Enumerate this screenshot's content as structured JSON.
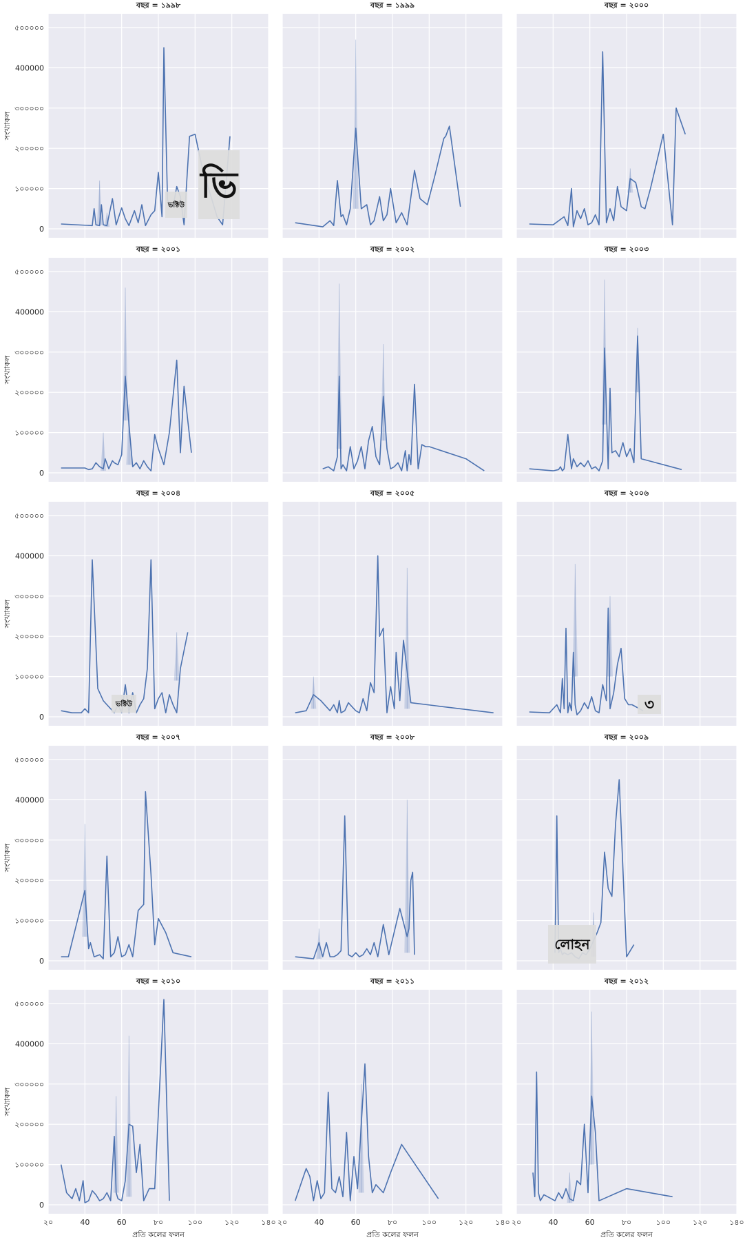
{
  "chart_data": {
    "type": "line",
    "layout": {
      "rows": 5,
      "cols": 3,
      "sharex": true,
      "sharey": true
    },
    "xlabel": "প্রতি কলের ফলন",
    "ylabel": "সংখ্যাকল",
    "xlim": [
      20,
      140
    ],
    "ylim": [
      0,
      500000
    ],
    "x_ticks": [
      20,
      40,
      60,
      80,
      100,
      120,
      140
    ],
    "x_tick_labels": [
      "২০",
      "40",
      "60",
      "৮০",
      "১০০",
      "১২০",
      "১৪০"
    ],
    "y_ticks": [
      0,
      100000,
      200000,
      300000,
      400000,
      500000
    ],
    "y_tick_labels": [
      "0",
      "১০০০০০",
      "২০০০০০",
      "৩০০০০০",
      "400000",
      "৫০০০০০"
    ],
    "grid": true,
    "color": "#4c72b0",
    "panels": [
      {
        "title": "বছর = ১৯৯৮",
        "x": [
          27,
          44,
          45,
          46,
          48,
          49,
          50,
          52,
          55,
          57,
          60,
          62,
          64,
          67,
          69,
          71,
          73,
          76,
          78,
          80,
          82,
          83,
          85,
          88,
          90,
          92,
          94,
          97,
          100,
          104,
          108,
          112,
          115,
          119
        ],
        "y": [
          12000,
          8000,
          50000,
          10000,
          8000,
          60000,
          10000,
          8000,
          75000,
          10000,
          52000,
          25000,
          8000,
          45000,
          15000,
          60000,
          8000,
          35000,
          45000,
          140000,
          30000,
          450000,
          70000,
          55000,
          105000,
          80000,
          10000,
          230000,
          235000,
          150000,
          90000,
          30000,
          10000,
          230000
        ],
        "ci": [
          {
            "x": 48,
            "low": 10000,
            "high": 120000
          },
          {
            "x": 52,
            "low": 5000,
            "high": 40000
          }
        ]
      },
      {
        "title": "বছর = ১৯৯৯",
        "x": [
          27,
          42,
          46,
          48,
          50,
          52,
          53,
          55,
          57,
          60,
          63,
          66,
          68,
          70,
          72,
          73,
          75,
          77,
          79,
          82,
          85,
          88,
          92,
          95,
          99,
          103,
          108,
          109,
          111,
          117
        ],
        "y": [
          15000,
          5000,
          20000,
          8000,
          120000,
          30000,
          35000,
          10000,
          50000,
          250000,
          50000,
          60000,
          10000,
          20000,
          60000,
          80000,
          20000,
          35000,
          100000,
          15000,
          40000,
          10000,
          145000,
          75000,
          60000,
          130000,
          225000,
          230000,
          255000,
          55000
        ],
        "ci": [
          {
            "x": 60,
            "low": 50000,
            "high": 470000
          }
        ]
      },
      {
        "title": "বছর = ২০০০",
        "x": [
          27,
          40,
          46,
          48,
          50,
          51,
          53,
          55,
          57,
          59,
          61,
          63,
          65,
          67,
          69,
          71,
          73,
          75,
          77,
          80,
          82,
          85,
          88,
          90,
          93,
          100,
          105,
          107,
          112
        ],
        "y": [
          12000,
          10000,
          30000,
          8000,
          100000,
          5000,
          45000,
          25000,
          50000,
          10000,
          15000,
          35000,
          10000,
          440000,
          15000,
          50000,
          20000,
          105000,
          55000,
          45000,
          125000,
          115000,
          55000,
          50000,
          100000,
          235000,
          10000,
          300000,
          235000
        ],
        "ci": [
          {
            "x": 82,
            "low": 90000,
            "high": 150000
          }
        ]
      },
      {
        "title": "বছর = ২০০১",
        "x": [
          27,
          40,
          42,
          44,
          46,
          48,
          50,
          51,
          53,
          55,
          56,
          58,
          60,
          62,
          64,
          66,
          68,
          70,
          72,
          74,
          76,
          78,
          80,
          83,
          86,
          90,
          92,
          94,
          96,
          98
        ],
        "y": [
          12000,
          12000,
          8000,
          10000,
          25000,
          15000,
          10000,
          35000,
          10000,
          30000,
          25000,
          20000,
          45000,
          240000,
          120000,
          15000,
          25000,
          10000,
          30000,
          15000,
          5000,
          95000,
          60000,
          20000,
          100000,
          280000,
          50000,
          215000,
          130000,
          50000
        ],
        "ci": [
          {
            "x": 62,
            "low": 130000,
            "high": 460000
          },
          {
            "x": 64,
            "low": 20000,
            "high": 170000
          },
          {
            "x": 50,
            "low": 5000,
            "high": 100000
          }
        ]
      },
      {
        "title": "বছর = ২০০২",
        "x": [
          42,
          45,
          48,
          50,
          51,
          52,
          53,
          55,
          57,
          59,
          61,
          63,
          65,
          67,
          69,
          71,
          73,
          75,
          77,
          79,
          81,
          83,
          85,
          87,
          88,
          89,
          90,
          92,
          94,
          96,
          98,
          100,
          120,
          130
        ],
        "y": [
          10000,
          15000,
          5000,
          40000,
          240000,
          10000,
          20000,
          5000,
          65000,
          10000,
          30000,
          65000,
          10000,
          80000,
          115000,
          40000,
          20000,
          190000,
          60000,
          10000,
          15000,
          25000,
          5000,
          55000,
          5000,
          45000,
          20000,
          220000,
          10000,
          70000,
          65000,
          65000,
          35000,
          5000
        ],
        "ci": [
          {
            "x": 51,
            "low": 60000,
            "high": 470000
          },
          {
            "x": 75,
            "low": 80000,
            "high": 320000
          }
        ]
      },
      {
        "title": "বছর = ২০০৩",
        "x": [
          27,
          40,
          43,
          44,
          45,
          46,
          48,
          50,
          51,
          53,
          55,
          57,
          59,
          61,
          63,
          65,
          67,
          68,
          70,
          71,
          72,
          74,
          76,
          78,
          80,
          82,
          84,
          86,
          88,
          110
        ],
        "y": [
          10000,
          5000,
          8000,
          15000,
          5000,
          10000,
          95000,
          10000,
          35000,
          15000,
          25000,
          15000,
          30000,
          10000,
          15000,
          5000,
          30000,
          310000,
          10000,
          210000,
          50000,
          55000,
          40000,
          75000,
          40000,
          60000,
          25000,
          340000,
          35000,
          8000
        ],
        "ci": [
          {
            "x": 68,
            "low": 120000,
            "high": 480000
          },
          {
            "x": 86,
            "low": 200000,
            "high": 360000
          }
        ]
      },
      {
        "title": "বছর = ২০০৪",
        "x": [
          27,
          33,
          38,
          40,
          42,
          44,
          47,
          50,
          52,
          54,
          56,
          58,
          60,
          62,
          64,
          66,
          68,
          70,
          72,
          74,
          76,
          78,
          80,
          82,
          84,
          86,
          88,
          90,
          92,
          96
        ],
        "y": [
          15000,
          10000,
          10000,
          20000,
          10000,
          390000,
          70000,
          40000,
          30000,
          20000,
          10000,
          30000,
          10000,
          80000,
          10000,
          60000,
          10000,
          30000,
          45000,
          120000,
          390000,
          20000,
          45000,
          60000,
          10000,
          55000,
          30000,
          10000,
          120000,
          210000
        ],
        "ci": [
          {
            "x": 90,
            "low": 90000,
            "high": 210000
          }
        ]
      },
      {
        "title": "বছর = ২০০৫",
        "x": [
          27,
          33,
          37,
          41,
          44,
          46,
          48,
          50,
          51,
          52,
          54,
          56,
          58,
          60,
          62,
          64,
          66,
          68,
          70,
          72,
          73,
          75,
          77,
          79,
          81,
          82,
          84,
          86,
          90,
          135
        ],
        "y": [
          10000,
          15000,
          55000,
          40000,
          25000,
          15000,
          30000,
          10000,
          40000,
          10000,
          15000,
          35000,
          25000,
          15000,
          10000,
          45000,
          15000,
          85000,
          60000,
          400000,
          200000,
          220000,
          10000,
          75000,
          20000,
          160000,
          40000,
          190000,
          35000,
          10000
        ],
        "ci": [
          {
            "x": 88,
            "low": 20000,
            "high": 370000
          },
          {
            "x": 37,
            "low": 20000,
            "high": 100000
          }
        ]
      },
      {
        "title": "বছর = ২০০৬",
        "x": [
          27,
          38,
          42,
          44,
          45,
          46,
          47,
          48,
          49,
          50,
          51,
          52,
          53,
          55,
          57,
          59,
          61,
          63,
          65,
          67,
          69,
          70,
          71,
          73,
          75,
          77,
          79,
          81,
          83,
          89
        ],
        "y": [
          12000,
          10000,
          30000,
          10000,
          95000,
          20000,
          220000,
          10000,
          35000,
          15000,
          160000,
          30000,
          5000,
          15000,
          35000,
          20000,
          50000,
          15000,
          10000,
          80000,
          40000,
          270000,
          20000,
          60000,
          130000,
          170000,
          45000,
          30000,
          30000,
          15000
        ],
        "ci": [
          {
            "x": 52,
            "low": 100000,
            "high": 380000
          },
          {
            "x": 71,
            "low": 100000,
            "high": 300000
          }
        ]
      },
      {
        "title": "বছর = ২০০৭",
        "x": [
          27,
          31,
          40,
          42,
          43,
          45,
          48,
          50,
          52,
          54,
          56,
          58,
          60,
          62,
          64,
          66,
          69,
          72,
          73,
          76,
          78,
          80,
          84,
          88,
          98
        ],
        "y": [
          10000,
          10000,
          175000,
          30000,
          45000,
          10000,
          15000,
          5000,
          260000,
          10000,
          20000,
          60000,
          10000,
          15000,
          40000,
          10000,
          125000,
          140000,
          420000,
          215000,
          40000,
          105000,
          70000,
          20000,
          10000
        ],
        "ci": [
          {
            "x": 40,
            "low": 60000,
            "high": 340000
          }
        ]
      },
      {
        "title": "বছর = ২০০৮",
        "x": [
          27,
          37,
          40,
          42,
          44,
          46,
          48,
          50,
          52,
          54,
          56,
          58,
          60,
          62,
          64,
          66,
          68,
          70,
          72,
          75,
          78,
          84,
          88,
          89,
          90,
          91,
          92
        ],
        "y": [
          10000,
          5000,
          45000,
          10000,
          45000,
          10000,
          10000,
          15000,
          25000,
          360000,
          15000,
          10000,
          20000,
          10000,
          15000,
          30000,
          15000,
          45000,
          10000,
          90000,
          15000,
          130000,
          60000,
          80000,
          200000,
          220000,
          15000
        ],
        "ci": [
          {
            "x": 88,
            "low": 20000,
            "high": 400000
          },
          {
            "x": 40,
            "low": 5000,
            "high": 80000
          }
        ]
      },
      {
        "title": "বছর = ২০০৯",
        "x": [
          41,
          42,
          43,
          44,
          45,
          46,
          48,
          50,
          52,
          54,
          56,
          58,
          60,
          62,
          64,
          66,
          68,
          70,
          72,
          74,
          76,
          80,
          84
        ],
        "y": [
          20000,
          360000,
          20000,
          30000,
          15000,
          20000,
          15000,
          20000,
          10000,
          5000,
          20000,
          15000,
          30000,
          50000,
          70000,
          95000,
          270000,
          180000,
          160000,
          340000,
          450000,
          10000,
          40000
        ],
        "ci": [
          {
            "x": 62,
            "low": 10000,
            "high": 120000
          }
        ]
      },
      {
        "title": "বছর = ২০১০",
        "x": [
          27,
          30,
          33,
          35,
          37,
          39,
          40,
          42,
          44,
          46,
          48,
          50,
          52,
          54,
          56,
          57,
          58,
          60,
          62,
          64,
          66,
          68,
          70,
          72,
          75,
          78,
          83,
          86
        ],
        "y": [
          100000,
          30000,
          15000,
          40000,
          10000,
          60000,
          5000,
          10000,
          35000,
          25000,
          10000,
          15000,
          30000,
          10000,
          170000,
          30000,
          15000,
          10000,
          60000,
          200000,
          195000,
          80000,
          150000,
          10000,
          40000,
          40000,
          510000,
          10000
        ],
        "ci": [
          {
            "x": 64,
            "low": 20000,
            "high": 420000
          },
          {
            "x": 57,
            "low": 30000,
            "high": 270000
          }
        ]
      },
      {
        "title": "বছর = ২০১১",
        "x": [
          27,
          30,
          33,
          35,
          37,
          39,
          41,
          43,
          45,
          47,
          49,
          51,
          53,
          55,
          57,
          59,
          61,
          63,
          65,
          67,
          69,
          71,
          75,
          79,
          85,
          105
        ],
        "y": [
          10000,
          50000,
          90000,
          70000,
          10000,
          60000,
          15000,
          30000,
          280000,
          40000,
          30000,
          70000,
          20000,
          180000,
          10000,
          120000,
          40000,
          200000,
          350000,
          120000,
          30000,
          50000,
          30000,
          80000,
          150000,
          15000
        ],
        "ci": [
          {
            "x": 63,
            "low": 30000,
            "high": 300000
          }
        ]
      },
      {
        "title": "বছর = ২০১২",
        "x": [
          29,
          30,
          31,
          32,
          33,
          35,
          37,
          39,
          41,
          43,
          45,
          47,
          49,
          51,
          53,
          55,
          57,
          59,
          61,
          63,
          65,
          70,
          80,
          105
        ],
        "y": [
          80000,
          20000,
          330000,
          30000,
          10000,
          25000,
          20000,
          15000,
          10000,
          30000,
          15000,
          40000,
          15000,
          10000,
          60000,
          50000,
          200000,
          30000,
          270000,
          180000,
          10000,
          20000,
          40000,
          20000
        ],
        "ci": [
          {
            "x": 61,
            "low": 100000,
            "high": 480000
          },
          {
            "x": 49,
            "low": 5000,
            "high": 80000
          }
        ]
      }
    ],
    "overlay_glyphs": [
      {
        "text": "ভি",
        "panel": 0,
        "size": "large"
      },
      {
        "text": "ভক্টিউ",
        "panel": 0,
        "size": "small"
      },
      {
        "text": "ভক্টিউ",
        "panel": 6,
        "size": "small"
      },
      {
        "text": "৩",
        "panel": 8,
        "size": "medium"
      },
      {
        "text": "লোহন",
        "panel": 11,
        "size": "medium"
      }
    ]
  }
}
